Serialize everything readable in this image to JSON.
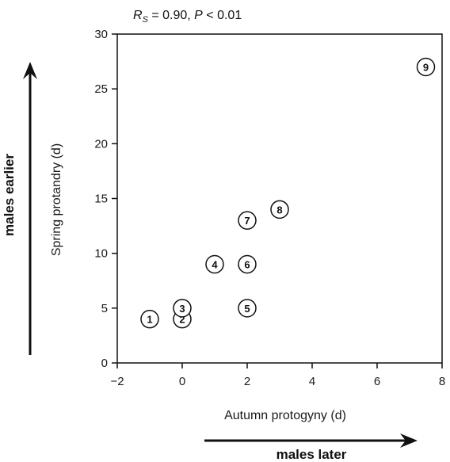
{
  "chart_data": {
    "type": "scatter",
    "title": "",
    "stat": {
      "rs_symbol": "R",
      "rs_subscript": "S",
      "rs_value": " = 0.90, ",
      "p_symbol": "P",
      "p_value": " < 0.01"
    },
    "xlabel": "Autumn protogyny (d)",
    "ylabel": "Spring protandry (d)",
    "xlim": [
      -2,
      8
    ],
    "ylim": [
      0,
      30
    ],
    "xticks": [
      "−2",
      "0",
      "2",
      "4",
      "6",
      "8"
    ],
    "yticks": [
      "0",
      "5",
      "10",
      "15",
      "20",
      "25",
      "30"
    ],
    "x_direction_label": "males later",
    "y_direction_label": "males earlier",
    "points": [
      {
        "label": "1",
        "x": -1,
        "y": 4
      },
      {
        "label": "2",
        "x": 0,
        "y": 4
      },
      {
        "label": "3",
        "x": 0,
        "y": 5
      },
      {
        "label": "4",
        "x": 1,
        "y": 9
      },
      {
        "label": "5",
        "x": 2,
        "y": 5
      },
      {
        "label": "6",
        "x": 2,
        "y": 9
      },
      {
        "label": "7",
        "x": 2,
        "y": 13
      },
      {
        "label": "8",
        "x": 3,
        "y": 14
      },
      {
        "label": "9",
        "x": 7.5,
        "y": 27
      }
    ]
  }
}
